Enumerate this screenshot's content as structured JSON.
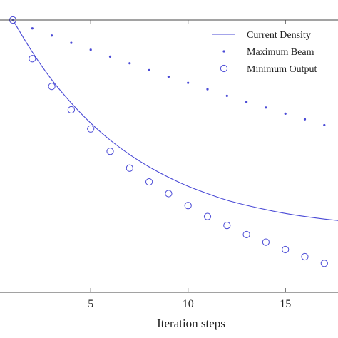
{
  "chart_data": {
    "type": "line",
    "xlabel": "Iteration steps",
    "ylabel": "",
    "xlim": [
      -3.6,
      18
    ],
    "x_ticks": [
      5,
      10,
      15
    ],
    "x_tick_labels": [
      "5",
      "10",
      "15"
    ],
    "grid": false,
    "legend_position": "top-right",
    "colors": {
      "series": "#4a4ad6",
      "axes": "#444444"
    },
    "series": [
      {
        "name": "Current Density",
        "style": "solid-line",
        "x": [
          1,
          2,
          3,
          4,
          5,
          6,
          7,
          8,
          9,
          10,
          11,
          12,
          13,
          14,
          15,
          16,
          17,
          18
        ],
        "values": [
          1.0,
          0.874,
          0.765,
          0.674,
          0.595,
          0.528,
          0.471,
          0.423,
          0.382,
          0.347,
          0.318,
          0.292,
          0.272,
          0.255,
          0.24,
          0.228,
          0.218,
          0.21
        ]
      },
      {
        "name": "Maximum Beam",
        "style": "dots",
        "x": [
          1,
          2,
          3,
          4,
          5,
          6,
          7,
          8,
          9,
          10,
          11,
          12,
          13,
          14,
          15,
          16,
          17
        ],
        "values": [
          1.0,
          0.967,
          0.939,
          0.91,
          0.883,
          0.856,
          0.83,
          0.803,
          0.777,
          0.753,
          0.728,
          0.702,
          0.678,
          0.656,
          0.632,
          0.61,
          0.587
        ]
      },
      {
        "name": "Minimum Output",
        "style": "open-circles",
        "x": [
          1,
          2,
          3,
          4,
          5,
          6,
          7,
          8,
          9,
          10,
          11,
          12,
          13,
          14,
          15,
          16,
          17
        ],
        "values": [
          1.0,
          0.848,
          0.739,
          0.647,
          0.572,
          0.484,
          0.418,
          0.364,
          0.318,
          0.271,
          0.228,
          0.193,
          0.157,
          0.127,
          0.098,
          0.07,
          0.044
        ]
      }
    ]
  }
}
